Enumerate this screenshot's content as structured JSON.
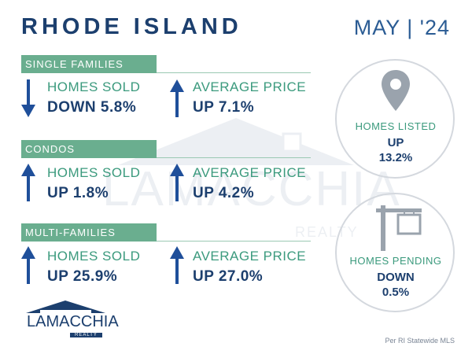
{
  "header": {
    "title": "RHODE ISLAND",
    "date": "MAY | '24"
  },
  "sections": [
    {
      "name": "SINGLE FAMILIES",
      "homes_sold": {
        "label": "HOMES SOLD",
        "direction": "down",
        "value": "DOWN 5.8%"
      },
      "average_price": {
        "label": "AVERAGE PRICE",
        "direction": "up",
        "value": "UP 7.1%"
      }
    },
    {
      "name": "CONDOS",
      "homes_sold": {
        "label": "HOMES SOLD",
        "direction": "up",
        "value": "UP 1.8%"
      },
      "average_price": {
        "label": "AVERAGE PRICE",
        "direction": "up",
        "value": "UP 4.2%"
      }
    },
    {
      "name": "MULTI-FAMILIES",
      "homes_sold": {
        "label": "HOMES SOLD",
        "direction": "up",
        "value": "UP 25.9%"
      },
      "average_price": {
        "label": "AVERAGE PRICE",
        "direction": "up",
        "value": "UP 27.0%"
      }
    }
  ],
  "homes_listed": {
    "label": "HOMES LISTED",
    "direction": "UP",
    "value": "13.2%",
    "icon": "map-pin-icon"
  },
  "homes_pending": {
    "label": "HOMES PENDING",
    "direction": "DOWN",
    "value": "0.5%",
    "icon": "sign-post-icon"
  },
  "watermark": {
    "name": "LAMACCHIA",
    "sub": "REALTY"
  },
  "logo": {
    "name": "LAMACCHIA",
    "sub": "REALTY"
  },
  "source": "Per RI Statewide MLS",
  "colors": {
    "navy": "#1c3f6e",
    "green": "#6aae8f",
    "teal_text": "#3b9a7d",
    "arrow": "#1f4f9a"
  }
}
